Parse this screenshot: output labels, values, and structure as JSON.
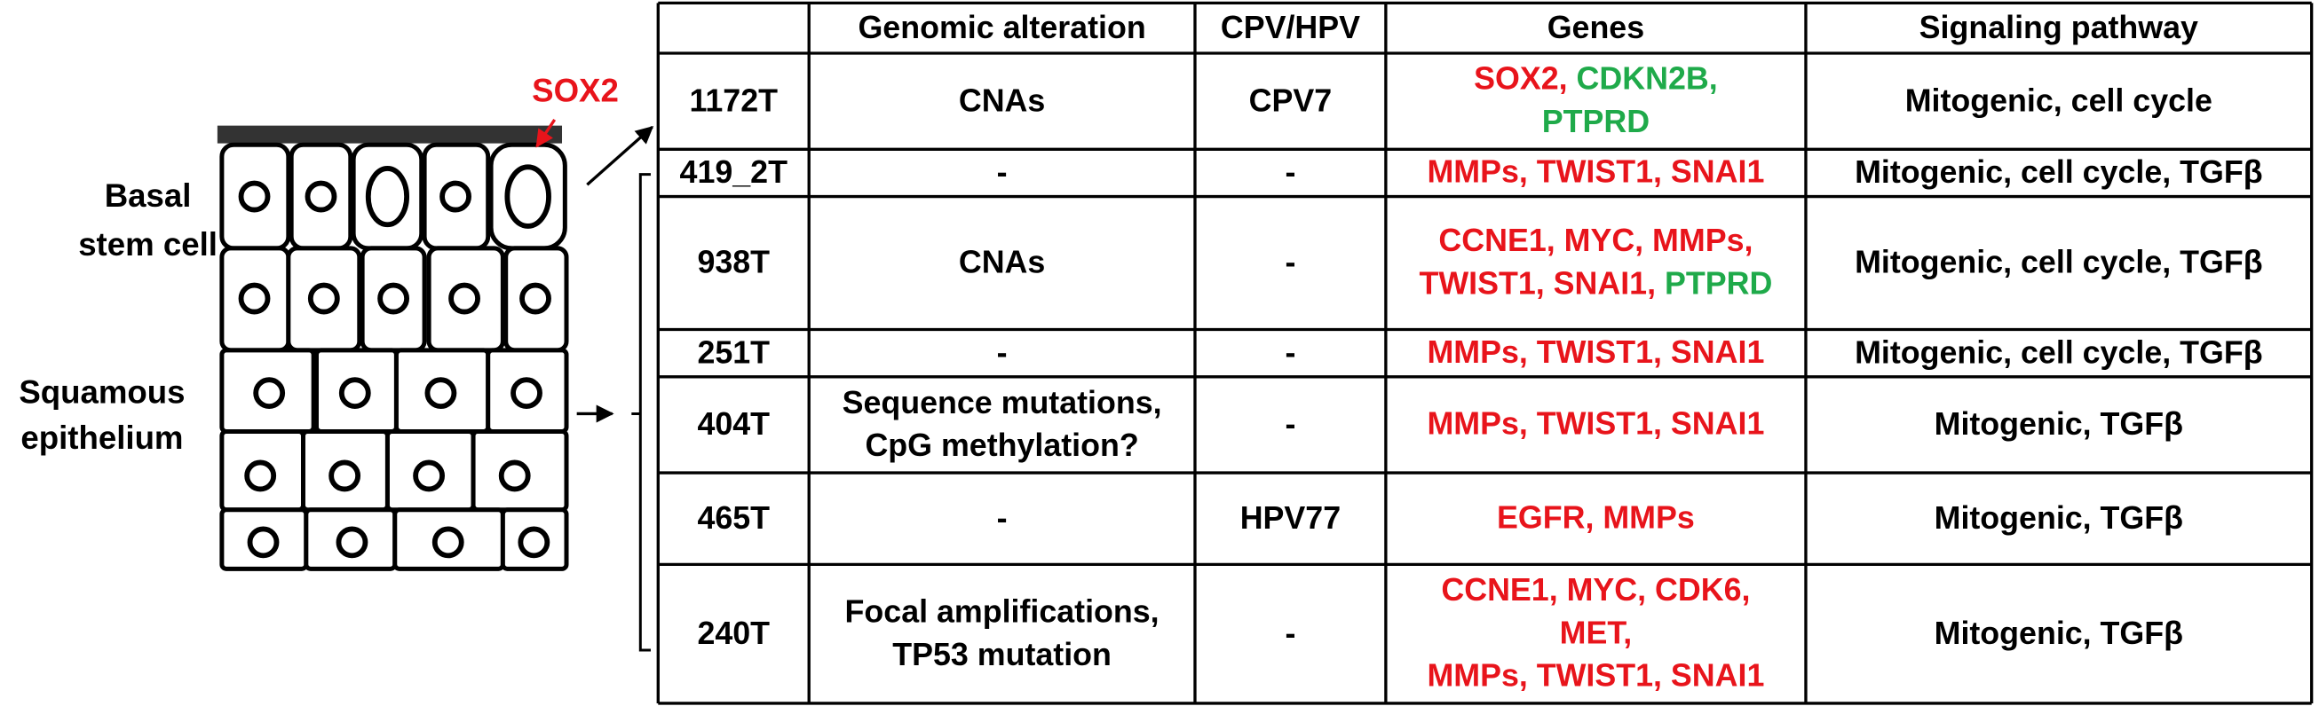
{
  "diagram": {
    "marker": {
      "text": "SOX2",
      "color": "#e8141b"
    },
    "basal_label": [
      "Basal",
      "stem cell"
    ],
    "epithelium_label": [
      "Squamous",
      "epithelium"
    ]
  },
  "table": {
    "header": [
      "Genomic alteration",
      "CPV/HPV",
      "Genes",
      "Signaling pathway"
    ],
    "rows": [
      {
        "id": "1172T",
        "alteration": "CNAs",
        "cpv": "CPV7",
        "genes": [
          [
            {
              "text": "SOX2,",
              "color": "#e8141b"
            },
            {
              "text": " CDKN2B,",
              "color": "#1faa4a"
            }
          ],
          [
            {
              "text": "PTPRD",
              "color": "#1faa4a"
            }
          ]
        ],
        "pathway": "Mitogenic, cell cycle"
      },
      {
        "id": "419_2T",
        "alteration": "-",
        "cpv": "-",
        "genes": [
          [
            {
              "text": "MMPs, TWIST1, SNAI1",
              "color": "#e8141b"
            }
          ]
        ],
        "pathway": "Mitogenic, cell cycle, TGFβ"
      },
      {
        "id": "938T",
        "alteration": "CNAs",
        "cpv": "-",
        "genes": [
          [
            {
              "text": "CCNE1, MYC, MMPs,",
              "color": "#e8141b"
            }
          ],
          [
            {
              "text": "TWIST1, SNAI1,",
              "color": "#e8141b"
            },
            {
              "text": " PTPRD",
              "color": "#1faa4a"
            }
          ]
        ],
        "pathway": "Mitogenic, cell cycle, TGFβ"
      },
      {
        "id": "251T",
        "alteration": "-",
        "cpv": "-",
        "genes": [
          [
            {
              "text": "MMPs, TWIST1, SNAI1",
              "color": "#e8141b"
            }
          ]
        ],
        "pathway": "Mitogenic, cell cycle, TGFβ"
      },
      {
        "id": "404T",
        "alteration": [
          "Sequence mutations,",
          "CpG methylation?"
        ],
        "cpv": "-",
        "genes": [
          [
            {
              "text": "MMPs, TWIST1, SNAI1",
              "color": "#e8141b"
            }
          ]
        ],
        "pathway": "Mitogenic, TGFβ"
      },
      {
        "id": "465T",
        "alteration": "-",
        "cpv": "HPV77",
        "genes": [
          [
            {
              "text": "EGFR, MMPs",
              "color": "#e8141b"
            }
          ]
        ],
        "pathway": "Mitogenic, TGFβ"
      },
      {
        "id": "240T",
        "alteration": [
          "Focal amplifications,",
          "TP53 mutation"
        ],
        "cpv": "-",
        "genes": [
          [
            {
              "text": "CCNE1, MYC, CDK6,",
              "color": "#e8141b"
            }
          ],
          [
            {
              "text": "MET,",
              "color": "#e8141b"
            }
          ],
          [
            {
              "text": "MMPs, TWIST1, SNAI1",
              "color": "#e8141b"
            }
          ]
        ],
        "pathway": "Mitogenic, TGFβ"
      }
    ]
  }
}
